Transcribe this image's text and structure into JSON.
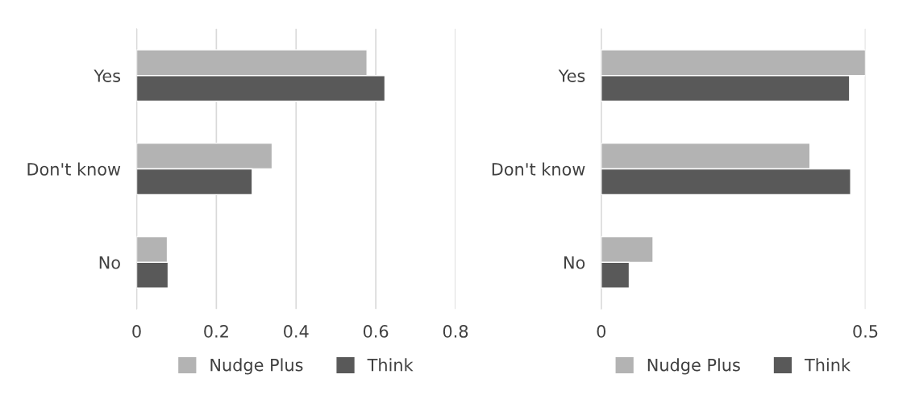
{
  "chart_data": [
    {
      "type": "bar",
      "orientation": "horizontal",
      "categories": [
        "Yes",
        "Don't know",
        "No"
      ],
      "series": [
        {
          "name": "Nudge Plus",
          "color": "#b3b3b3",
          "values": [
            0.578,
            0.34,
            0.077
          ]
        },
        {
          "name": "Think",
          "color": "#595959",
          "values": [
            0.623,
            0.29,
            0.079
          ]
        }
      ],
      "xlim": [
        0,
        0.8
      ],
      "xticks": [
        0,
        0.2,
        0.4,
        0.6,
        0.8
      ],
      "grid": "x",
      "legend": "bottom"
    },
    {
      "type": "bar",
      "orientation": "horizontal",
      "categories": [
        "Yes",
        "Don't know",
        "No"
      ],
      "series": [
        {
          "name": "Nudge Plus",
          "color": "#b3b3b3",
          "values": [
            0.5,
            0.395,
            0.098
          ]
        },
        {
          "name": "Think",
          "color": "#595959",
          "values": [
            0.47,
            0.472,
            0.053
          ]
        }
      ],
      "xlim": [
        0,
        0.5
      ],
      "xticks": [
        0,
        0.5
      ],
      "grid": "x",
      "legend": "bottom"
    }
  ]
}
